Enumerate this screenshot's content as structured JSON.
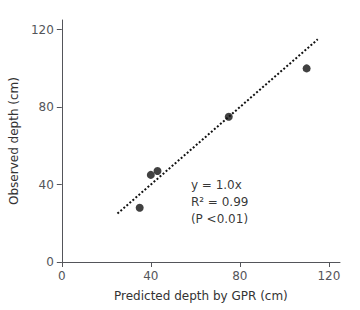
{
  "chart_data": {
    "type": "scatter",
    "xlabel": "Predicted depth by GPR (cm)",
    "ylabel": "Observed depth (cm)",
    "series": [
      {
        "type": "scatter",
        "x": [
          35,
          40,
          43,
          75,
          110
        ],
        "values": [
          28,
          45,
          47,
          75,
          100
        ],
        "color": "#111111",
        "marker": "circle"
      },
      {
        "type": "line",
        "x": [
          25,
          115
        ],
        "values": [
          25,
          115
        ],
        "color": "#111111",
        "line_style": "dotted"
      }
    ],
    "annotations": [
      {
        "text": "y = 1.0x\nR² = 0.99\n(P <0.01)",
        "x": 58,
        "y": 18
      }
    ],
    "xlim": [
      0,
      125
    ],
    "ylim": [
      0,
      125
    ],
    "xticks": [
      0,
      40,
      80,
      120
    ],
    "yticks": [
      0,
      40,
      80,
      120
    ],
    "grid": false
  }
}
